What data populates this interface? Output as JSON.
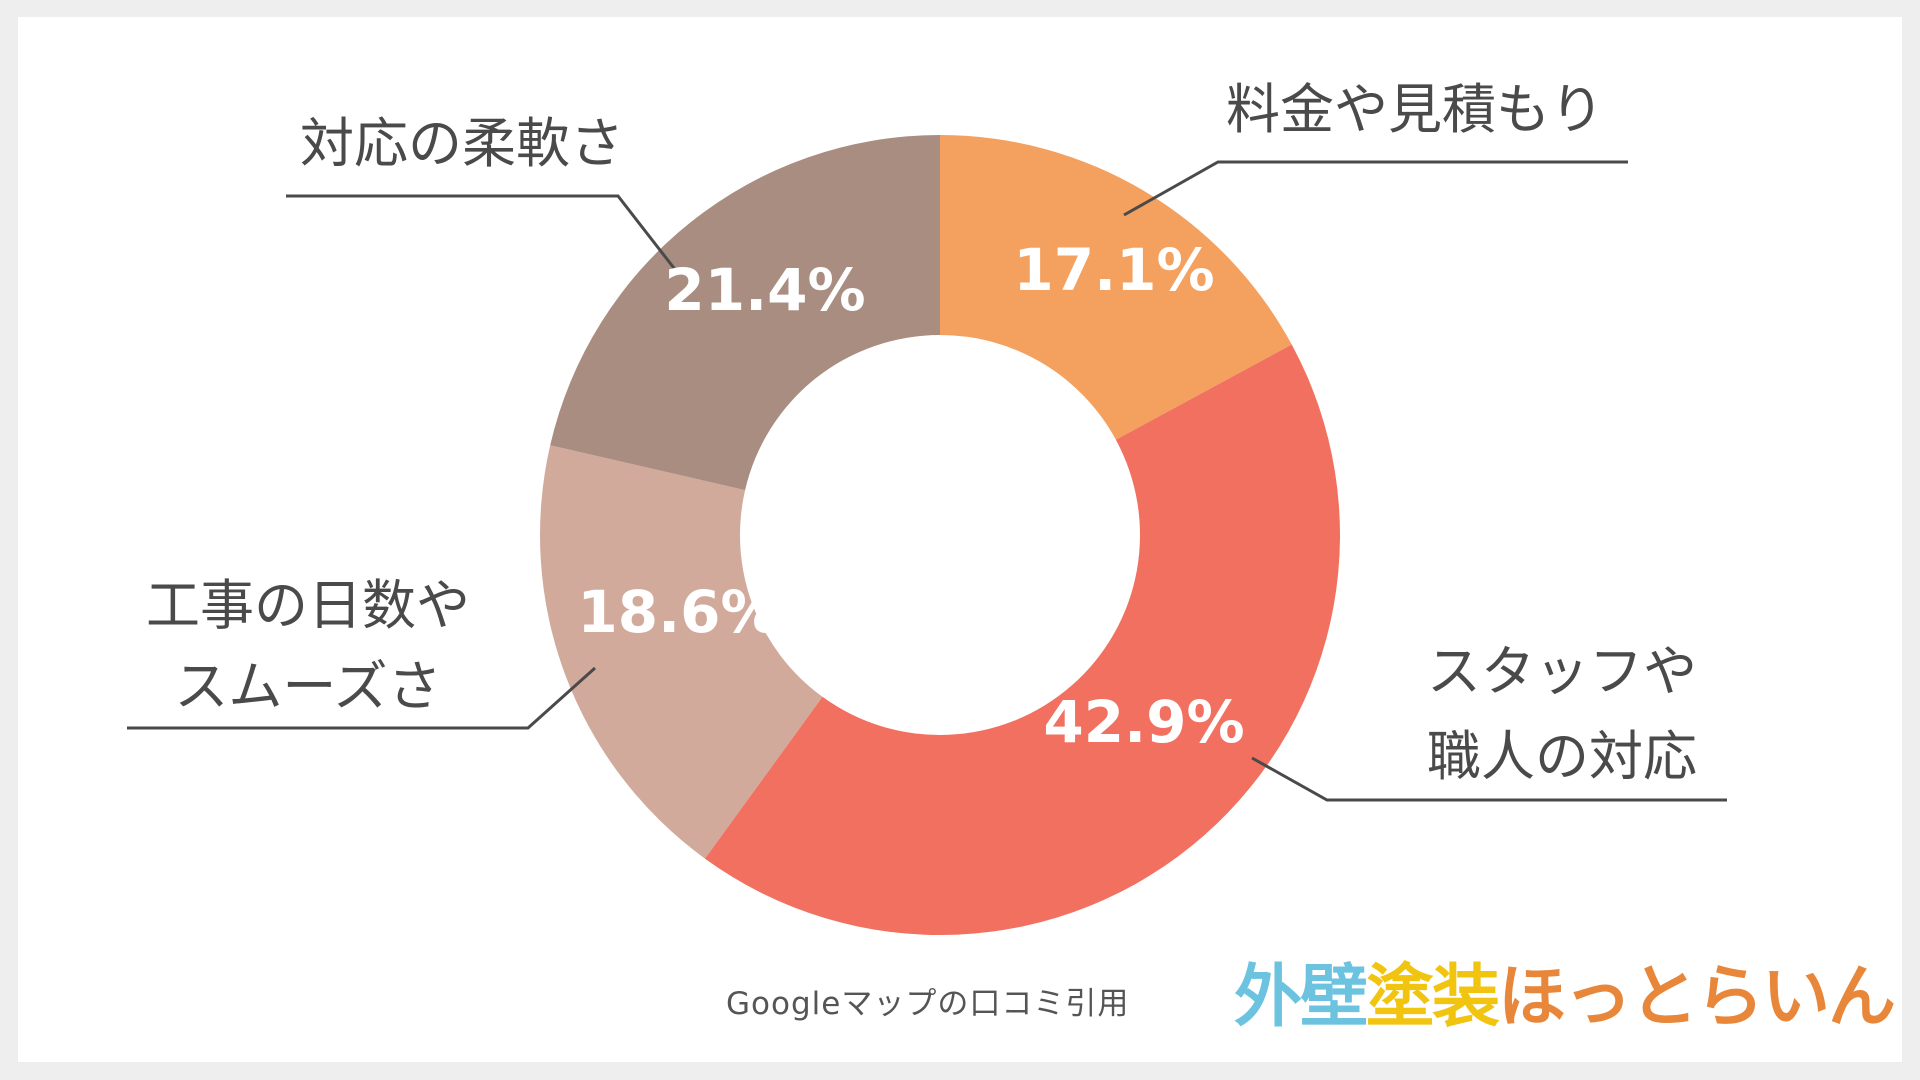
{
  "chart_data": {
    "type": "donut",
    "categories": [
      "料金や見積もり",
      "スタッフや職人の対応",
      "工事の日数やスムーズさ",
      "対応の柔軟さ"
    ],
    "values": [
      17.1,
      42.9,
      18.6,
      21.4
    ],
    "value_labels": [
      "17.1%",
      "42.9%",
      "18.6%",
      "21.4%"
    ],
    "category_lines": [
      [
        "料金や見積もり"
      ],
      [
        "スタッフや",
        "職人の対応"
      ],
      [
        "工事の日数や",
        "スムーズさ"
      ],
      [
        "対応の柔軟さ"
      ]
    ],
    "colors": [
      "#F4A05E",
      "#F27060",
      "#D1AA9C",
      "#A98D81"
    ],
    "start": "12 o'clock",
    "direction": "clockwise",
    "labels_outside": true,
    "legend": "none"
  },
  "footer": {
    "source": "Googleマップの口コミ引用"
  },
  "logo": {
    "text": "外壁塗装ほっとらいん",
    "segments": [
      {
        "text": "外壁",
        "color": "#6CC3E0"
      },
      {
        "text": "塗装",
        "color": "#F1C40F"
      },
      {
        "text": "ほっとらいん",
        "color": "#E8863A"
      }
    ]
  }
}
